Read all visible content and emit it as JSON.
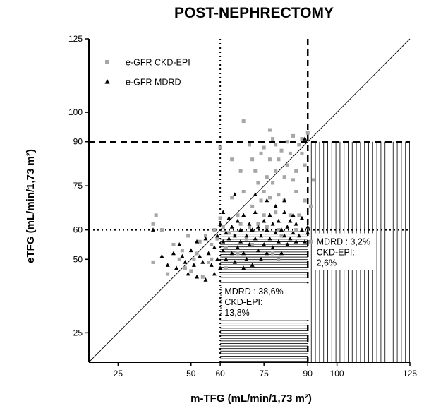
{
  "chart_data": {
    "type": "scatter",
    "title": "POST-NEPHRECTOMY",
    "xlabel": "m-TFG (mL/min/1,73 m²)",
    "ylabel": "eTFG (mL/min/1,73 m²)",
    "xlim": [
      15,
      125
    ],
    "ylim": [
      15,
      125
    ],
    "x_ticks": [
      25,
      50,
      60,
      75,
      90,
      100,
      125
    ],
    "y_ticks": [
      25,
      50,
      60,
      75,
      90,
      100,
      125
    ],
    "grid": false,
    "legend_position": "top-left",
    "identity_line": true,
    "reference_lines": {
      "dotted": 60,
      "dashed": 90
    },
    "annotations": [
      {
        "lines": [
          "MDRD : 38,6%",
          "CKD-EPI:",
          "13,8%"
        ],
        "x": 61.5,
        "y": 38
      },
      {
        "lines": [
          "MDRD : 3,2%",
          "CKD-EPI:",
          "2,6%"
        ],
        "x": 93,
        "y": 55
      }
    ],
    "series": [
      {
        "name": "e-GFR CKD-EPI",
        "marker": "square",
        "color": "#a6a6a6",
        "points": [
          [
            37,
            62
          ],
          [
            37,
            49
          ],
          [
            38,
            65
          ],
          [
            40,
            60
          ],
          [
            42,
            45
          ],
          [
            44,
            55
          ],
          [
            46,
            50
          ],
          [
            47,
            53
          ],
          [
            48,
            47
          ],
          [
            49,
            58
          ],
          [
            50,
            46
          ],
          [
            51,
            50
          ],
          [
            52,
            52
          ],
          [
            53,
            56
          ],
          [
            54,
            44
          ],
          [
            55,
            58
          ],
          [
            56,
            49
          ],
          [
            57,
            55
          ],
          [
            58,
            60
          ],
          [
            59,
            57
          ],
          [
            60,
            88
          ],
          [
            60,
            64
          ],
          [
            61,
            61
          ],
          [
            62,
            54
          ],
          [
            63,
            59
          ],
          [
            64,
            84
          ],
          [
            64,
            71
          ],
          [
            65,
            58
          ],
          [
            66,
            65
          ],
          [
            67,
            80
          ],
          [
            67,
            62
          ],
          [
            68,
            97
          ],
          [
            68,
            73
          ],
          [
            69,
            57
          ],
          [
            70,
            61
          ],
          [
            70,
            89
          ],
          [
            71,
            68
          ],
          [
            71,
            84
          ],
          [
            72,
            80
          ],
          [
            73,
            76
          ],
          [
            73,
            62
          ],
          [
            74,
            70
          ],
          [
            74,
            86
          ],
          [
            75,
            73
          ],
          [
            75,
            88
          ],
          [
            76,
            78
          ],
          [
            76,
            61
          ],
          [
            77,
            94
          ],
          [
            77,
            71
          ],
          [
            77,
            84
          ],
          [
            78,
            91
          ],
          [
            78,
            76
          ],
          [
            79,
            66
          ],
          [
            79,
            80
          ],
          [
            79,
            89
          ],
          [
            80,
            84
          ],
          [
            80,
            60
          ],
          [
            80,
            72
          ],
          [
            81,
            58
          ],
          [
            81,
            87
          ],
          [
            82,
            78
          ],
          [
            82,
            70
          ],
          [
            83,
            82
          ],
          [
            83,
            90
          ],
          [
            84,
            86
          ],
          [
            85,
            77
          ],
          [
            85,
            92
          ],
          [
            86,
            80
          ],
          [
            86,
            73
          ],
          [
            87,
            65
          ],
          [
            87,
            89
          ],
          [
            88,
            86
          ],
          [
            88,
            91
          ],
          [
            89,
            82
          ],
          [
            89,
            70
          ],
          [
            90,
            93
          ],
          [
            91,
            68
          ],
          [
            91,
            56
          ],
          [
            92,
            77
          ],
          [
            80,
            50
          ],
          [
            83,
            55
          ],
          [
            71,
            55
          ],
          [
            66,
            52
          ],
          [
            62,
            47
          ],
          [
            57,
            50
          ],
          [
            75,
            65
          ],
          [
            86,
            60
          ],
          [
            78,
            52
          ],
          [
            84,
            65
          ]
        ]
      },
      {
        "name": "e-GFR MDRD",
        "marker": "triangle",
        "color": "#000000",
        "points": [
          [
            37,
            60
          ],
          [
            40,
            51
          ],
          [
            42,
            48
          ],
          [
            44,
            52
          ],
          [
            45,
            47
          ],
          [
            46,
            55
          ],
          [
            47,
            51
          ],
          [
            48,
            49
          ],
          [
            49,
            45
          ],
          [
            50,
            53
          ],
          [
            51,
            48
          ],
          [
            52,
            56
          ],
          [
            52,
            44
          ],
          [
            53,
            51
          ],
          [
            54,
            49
          ],
          [
            55,
            57
          ],
          [
            55,
            43
          ],
          [
            56,
            52
          ],
          [
            57,
            48
          ],
          [
            58,
            54
          ],
          [
            58,
            45
          ],
          [
            59,
            58
          ],
          [
            59,
            50
          ],
          [
            60,
            62
          ],
          [
            60,
            47
          ],
          [
            61,
            56
          ],
          [
            61,
            53
          ],
          [
            62,
            59
          ],
          [
            62,
            50
          ],
          [
            63,
            57
          ],
          [
            63,
            64
          ],
          [
            64,
            52
          ],
          [
            64,
            61
          ],
          [
            65,
            49
          ],
          [
            65,
            58
          ],
          [
            66,
            63
          ],
          [
            66,
            54
          ],
          [
            67,
            56
          ],
          [
            67,
            60
          ],
          [
            68,
            52
          ],
          [
            68,
            65
          ],
          [
            69,
            58
          ],
          [
            69,
            50
          ],
          [
            70,
            62
          ],
          [
            70,
            55
          ],
          [
            71,
            48
          ],
          [
            71,
            60
          ],
          [
            72,
            57
          ],
          [
            72,
            66
          ],
          [
            73,
            53
          ],
          [
            73,
            61
          ],
          [
            74,
            58
          ],
          [
            74,
            50
          ],
          [
            75,
            63
          ],
          [
            75,
            55
          ],
          [
            76,
            60
          ],
          [
            76,
            52
          ],
          [
            77,
            65
          ],
          [
            77,
            57
          ],
          [
            78,
            62
          ],
          [
            78,
            54
          ],
          [
            79,
            68
          ],
          [
            79,
            59
          ],
          [
            80,
            56
          ],
          [
            80,
            63
          ],
          [
            81,
            60
          ],
          [
            81,
            52
          ],
          [
            82,
            66
          ],
          [
            82,
            58
          ],
          [
            83,
            61
          ],
          [
            83,
            55
          ],
          [
            84,
            63
          ],
          [
            84,
            57
          ],
          [
            85,
            59
          ],
          [
            85,
            65
          ],
          [
            86,
            56
          ],
          [
            86,
            62
          ],
          [
            87,
            58
          ],
          [
            88,
            64
          ],
          [
            88,
            60
          ],
          [
            89,
            56
          ],
          [
            90,
            61
          ],
          [
            89,
            91
          ],
          [
            90,
            59
          ],
          [
            72,
            72
          ],
          [
            65,
            72
          ],
          [
            76,
            70
          ],
          [
            82,
            70
          ],
          [
            61,
            66
          ],
          [
            68,
            47
          ]
        ]
      }
    ]
  }
}
